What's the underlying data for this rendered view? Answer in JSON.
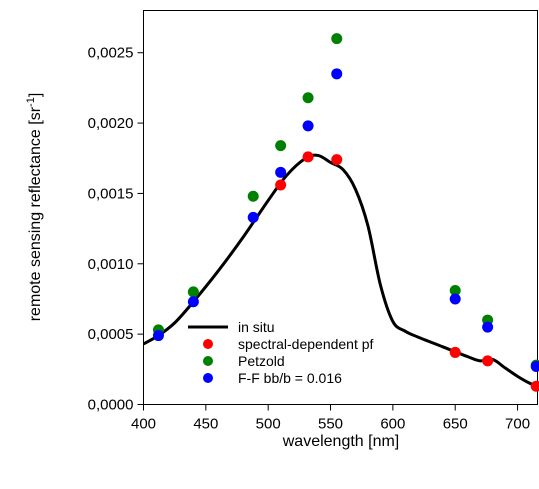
{
  "chart_data": {
    "type": "scatter",
    "xlabel": "wavelength [nm]",
    "ylabel_main": "remote sensing reflectance [sr",
    "ylabel_sup": "-1",
    "ylabel_end": "]",
    "xlim": [
      400,
      716
    ],
    "ylim": [
      0,
      0.0028
    ],
    "x_ticks": [
      400,
      450,
      500,
      550,
      600,
      650,
      700
    ],
    "x_tick_labels": [
      "400",
      "450",
      "500",
      "550",
      "600",
      "650",
      "700"
    ],
    "y_ticks": [
      0,
      0.0005,
      0.001,
      0.0015,
      0.002,
      0.0025
    ],
    "y_tick_labels": [
      "0,0000",
      "0,0005",
      "0,0010",
      "0,0015",
      "0,0020",
      "0,0025"
    ],
    "grid": false,
    "legend_position": "bottom-left",
    "series": [
      {
        "name": "in situ",
        "kind": "line",
        "color": "#000000",
        "x": [
          400,
          412,
          425,
          440,
          460,
          480,
          500,
          515,
          530,
          540,
          550,
          560,
          570,
          580,
          590,
          600,
          610,
          620,
          640,
          660,
          670,
          680,
          690,
          700,
          710,
          716
        ],
        "y": [
          0.00043,
          0.00049,
          0.00058,
          0.00073,
          0.00095,
          0.00119,
          0.00145,
          0.00163,
          0.00175,
          0.00177,
          0.00172,
          0.00167,
          0.00153,
          0.00127,
          0.00085,
          0.00059,
          0.00052,
          0.00048,
          0.00041,
          0.00034,
          0.00031,
          0.00032,
          0.00026,
          0.0002,
          0.00015,
          0.00013
        ]
      },
      {
        "name": "spectral-dependent pf",
        "kind": "points",
        "color": "#ff0000",
        "x": [
          510,
          532,
          555,
          650,
          676,
          715
        ],
        "y": [
          0.00156,
          0.00176,
          0.00174,
          0.00037,
          0.00031,
          0.00013
        ]
      },
      {
        "name": "Petzold",
        "kind": "points",
        "color": "#008000",
        "x": [
          412,
          440,
          488,
          510,
          532,
          555,
          650,
          676,
          715
        ],
        "y": [
          0.00053,
          0.0008,
          0.00148,
          0.00184,
          0.00218,
          0.0026,
          0.00081,
          0.0006,
          0.00028
        ]
      },
      {
        "name": "F-F bb/b = 0.016",
        "kind": "points",
        "color": "#0000ff",
        "x": [
          412,
          440,
          488,
          510,
          532,
          555,
          650,
          676,
          715
        ],
        "y": [
          0.00049,
          0.00073,
          0.00133,
          0.00165,
          0.00198,
          0.00235,
          0.00075,
          0.00055,
          0.00027
        ]
      }
    ]
  }
}
